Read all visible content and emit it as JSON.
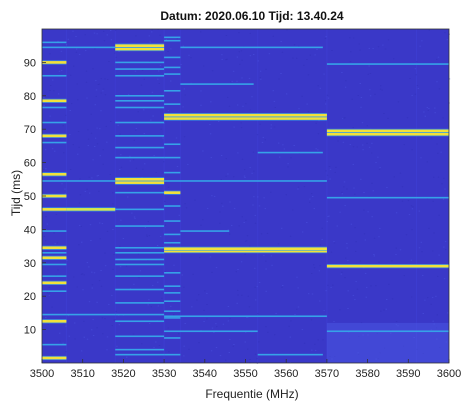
{
  "chart_data": {
    "type": "heatmap",
    "title": "Datum: 2020.06.10  Tijd: 13.40.24",
    "xlabel": "Frequentie (MHz)",
    "ylabel": "Tijd (ms)",
    "xlim": [
      3500,
      3600
    ],
    "ylim": [
      0,
      100
    ],
    "x_ticks": [
      "3500",
      "3510",
      "3520",
      "3530",
      "3540",
      "3550",
      "3560",
      "3570",
      "3580",
      "3590",
      "3600"
    ],
    "y_ticks": [
      "10",
      "20",
      "30",
      "40",
      "50",
      "60",
      "70",
      "80",
      "90"
    ],
    "grid": false,
    "colormap": "parula",
    "colors": {
      "background": "#3a38c8",
      "low": "#3f3fd6",
      "mid": "#36a2e8",
      "high": "#f2e13a",
      "peak": "#d9e84a"
    },
    "channels": [
      {
        "freq_range": [
          3500,
          3506
        ],
        "bursts": [
          {
            "t": 1.5,
            "level": "high"
          },
          {
            "t": 5.5,
            "level": "mid"
          },
          {
            "t": 12.5,
            "level": "high"
          },
          {
            "t": 14.5,
            "level": "mid"
          },
          {
            "t": 21.5,
            "level": "mid"
          },
          {
            "t": 24,
            "level": "high"
          },
          {
            "t": 26,
            "level": "mid"
          },
          {
            "t": 29.5,
            "level": "mid"
          },
          {
            "t": 31.5,
            "level": "high"
          },
          {
            "t": 33,
            "level": "mid"
          },
          {
            "t": 34.5,
            "level": "high"
          },
          {
            "t": 39.5,
            "level": "mid"
          },
          {
            "t": 46,
            "level": "high"
          },
          {
            "t": 50,
            "level": "high"
          },
          {
            "t": 54.5,
            "level": "mid"
          },
          {
            "t": 56.5,
            "level": "high"
          },
          {
            "t": 66,
            "level": "mid"
          },
          {
            "t": 68,
            "level": "high"
          },
          {
            "t": 72,
            "level": "mid"
          },
          {
            "t": 76.5,
            "level": "mid"
          },
          {
            "t": 78.5,
            "level": "high"
          },
          {
            "t": 86,
            "level": "mid"
          },
          {
            "t": 90,
            "level": "high"
          },
          {
            "t": 94.5,
            "level": "mid"
          },
          {
            "t": 96,
            "level": "mid"
          }
        ]
      },
      {
        "freq_range": [
          3506,
          3518
        ],
        "bursts": [
          {
            "t": 14.5,
            "level": "mid"
          },
          {
            "t": 46,
            "level": "peak"
          },
          {
            "t": 54.5,
            "level": "mid"
          },
          {
            "t": 94.5,
            "level": "mid"
          }
        ]
      },
      {
        "freq_range": [
          3518,
          3530
        ],
        "bursts": [
          {
            "t": 2.5,
            "level": "mid"
          },
          {
            "t": 4,
            "level": "mid"
          },
          {
            "t": 8,
            "level": "mid"
          },
          {
            "t": 12.5,
            "level": "mid"
          },
          {
            "t": 14.5,
            "level": "mid"
          },
          {
            "t": 18,
            "level": "mid"
          },
          {
            "t": 22,
            "level": "mid"
          },
          {
            "t": 26,
            "level": "mid"
          },
          {
            "t": 29.5,
            "level": "mid"
          },
          {
            "t": 31,
            "level": "mid"
          },
          {
            "t": 33,
            "level": "mid"
          },
          {
            "t": 34.5,
            "level": "mid"
          },
          {
            "t": 41,
            "level": "mid"
          },
          {
            "t": 46,
            "level": "mid"
          },
          {
            "t": 51,
            "level": "mid"
          },
          {
            "t": 54,
            "level": "high"
          },
          {
            "t": 55,
            "level": "high"
          },
          {
            "t": 61.5,
            "level": "mid"
          },
          {
            "t": 64.5,
            "level": "mid"
          },
          {
            "t": 68,
            "level": "mid"
          },
          {
            "t": 72,
            "level": "mid"
          },
          {
            "t": 76.5,
            "level": "mid"
          },
          {
            "t": 78.5,
            "level": "mid"
          },
          {
            "t": 80,
            "level": "mid"
          },
          {
            "t": 86,
            "level": "mid"
          },
          {
            "t": 88,
            "level": "mid"
          },
          {
            "t": 90,
            "level": "mid"
          },
          {
            "t": 94,
            "level": "high"
          },
          {
            "t": 95,
            "level": "high"
          }
        ]
      },
      {
        "freq_range": [
          3530,
          3534
        ],
        "bursts": [
          {
            "t": 2.5,
            "level": "mid"
          },
          {
            "t": 7.5,
            "level": "mid"
          },
          {
            "t": 13.5,
            "level": "mid"
          },
          {
            "t": 15.5,
            "level": "mid"
          },
          {
            "t": 18.5,
            "level": "mid"
          },
          {
            "t": 21,
            "level": "mid"
          },
          {
            "t": 23,
            "level": "mid"
          },
          {
            "t": 27,
            "level": "mid"
          },
          {
            "t": 36,
            "level": "mid"
          },
          {
            "t": 38.5,
            "level": "mid"
          },
          {
            "t": 42.5,
            "level": "mid"
          },
          {
            "t": 47,
            "level": "mid"
          },
          {
            "t": 51,
            "level": "high"
          },
          {
            "t": 57,
            "level": "mid"
          },
          {
            "t": 61.5,
            "level": "mid"
          },
          {
            "t": 65.5,
            "level": "mid"
          },
          {
            "t": 77.5,
            "level": "mid"
          },
          {
            "t": 81.5,
            "level": "mid"
          },
          {
            "t": 86.5,
            "level": "mid"
          },
          {
            "t": 88.5,
            "level": "mid"
          },
          {
            "t": 91.5,
            "level": "mid"
          },
          {
            "t": 96.5,
            "level": "mid"
          },
          {
            "t": 97.5,
            "level": "mid"
          }
        ]
      },
      {
        "freq_range": [
          3530,
          3553
        ],
        "bursts": [
          {
            "t": 9.5,
            "level": "mid"
          }
        ]
      },
      {
        "freq_range": [
          3530,
          3570
        ],
        "bursts": [
          {
            "t": 33.5,
            "level": "high"
          },
          {
            "t": 34.2,
            "level": "high"
          },
          {
            "t": 54.5,
            "level": "mid"
          },
          {
            "t": 73.2,
            "level": "high"
          },
          {
            "t": 74.2,
            "level": "high"
          }
        ]
      },
      {
        "freq_range": [
          3534,
          3569
        ],
        "bursts": [
          {
            "t": 94.5,
            "level": "mid"
          }
        ]
      },
      {
        "freq_range": [
          3530,
          3570
        ],
        "bursts": [
          {
            "t": 14,
            "level": "mid"
          }
        ]
      },
      {
        "freq_range": [
          3534,
          3546
        ],
        "bursts": [
          {
            "t": 39.5,
            "level": "mid"
          }
        ]
      },
      {
        "freq_range": [
          3534,
          3552
        ],
        "bursts": [
          {
            "t": 83.5,
            "level": "mid"
          }
        ]
      },
      {
        "freq_range": [
          3553,
          3569
        ],
        "bursts": [
          {
            "t": 2.5,
            "level": "mid"
          },
          {
            "t": 63,
            "level": "mid"
          }
        ]
      },
      {
        "freq_range": [
          3570,
          3600
        ],
        "bursts": [
          {
            "t": 9.5,
            "level": "mid"
          },
          {
            "t": 29,
            "level": "high"
          },
          {
            "t": 49.5,
            "level": "mid"
          },
          {
            "t": 68.5,
            "level": "high"
          },
          {
            "t": 69.5,
            "level": "high"
          },
          {
            "t": 89.5,
            "level": "mid"
          }
        ]
      }
    ]
  }
}
